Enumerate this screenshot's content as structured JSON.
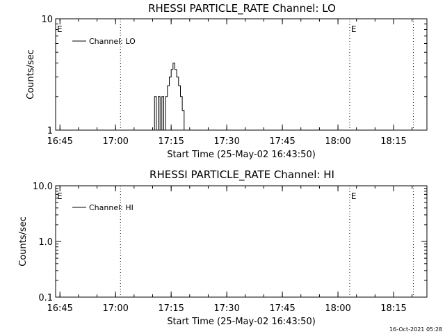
{
  "colors": {
    "background": "#ffffff",
    "foreground": "#000000"
  },
  "timestamp": "16-Oct-2021 05:28",
  "chart_data": [
    {
      "type": "line",
      "title": "RHESSI PARTICLE_RATE Channel: LO",
      "xlabel": "Start Time (25-May-02 16:43:50)",
      "ylabel": "Counts/sec",
      "y_scale": "log",
      "ylim": [
        1,
        10
      ],
      "y_ticks": [
        "1",
        "10"
      ],
      "xlim": [
        "16:43:50",
        "18:24:00"
      ],
      "x_ticks": [
        "16:45",
        "17:00",
        "17:15",
        "17:30",
        "17:45",
        "18:00",
        "18:15"
      ],
      "grid": false,
      "legend": {
        "position": "top-left",
        "entries": [
          "Channel: LO"
        ]
      },
      "eclipse_markers": [
        {
          "label": "E",
          "x": "16:43:50"
        },
        {
          "label": "E",
          "x": "18:03:10"
        }
      ],
      "dotted_lines_x": [
        "17:01:20",
        "18:03:10",
        "18:20:20"
      ],
      "series": [
        {
          "name": "Channel: LO",
          "x": [
            "17:10:00",
            "17:10:30",
            "17:10:30",
            "17:11:00",
            "17:11:00",
            "17:11:30",
            "17:11:30",
            "17:12:00",
            "17:12:00",
            "17:12:30",
            "17:12:30",
            "17:13:00",
            "17:13:00",
            "17:13:30",
            "17:13:30",
            "17:14:00",
            "17:14:00",
            "17:14:30",
            "17:14:30",
            "17:15:00",
            "17:15:00",
            "17:15:30",
            "17:15:30",
            "17:16:00",
            "17:16:00",
            "17:16:30",
            "17:16:30",
            "17:17:00",
            "17:17:00",
            "17:17:30",
            "17:17:30",
            "17:18:00",
            "17:18:00",
            "17:18:30",
            "17:18:30",
            "17:19:00"
          ],
          "values": [
            1,
            1,
            2,
            2,
            1,
            1,
            2,
            2,
            1,
            1,
            2,
            2,
            1,
            1,
            2,
            2,
            2.5,
            2.5,
            3,
            3,
            3.5,
            3.5,
            4,
            4,
            3.5,
            3.5,
            3,
            3,
            2.5,
            2.5,
            2,
            2,
            1.5,
            1.5,
            1,
            1
          ]
        }
      ]
    },
    {
      "type": "line",
      "title": "RHESSI PARTICLE_RATE Channel: HI",
      "xlabel": "Start Time (25-May-02 16:43:50)",
      "ylabel": "Counts/sec",
      "y_scale": "log",
      "ylim": [
        0.1,
        10
      ],
      "y_ticks": [
        "0.1",
        "1.0",
        "10.0"
      ],
      "xlim": [
        "16:43:50",
        "18:24:00"
      ],
      "x_ticks": [
        "16:45",
        "17:00",
        "17:15",
        "17:30",
        "17:45",
        "18:00",
        "18:15"
      ],
      "grid": false,
      "legend": {
        "position": "top-left",
        "entries": [
          "Channel: HI"
        ]
      },
      "eclipse_markers": [
        {
          "label": "E",
          "x": "16:43:50"
        },
        {
          "label": "E",
          "x": "18:03:10"
        }
      ],
      "dotted_lines_x": [
        "17:01:20",
        "18:03:10",
        "18:20:20"
      ],
      "series": [
        {
          "name": "Channel: HI",
          "x": [],
          "values": []
        }
      ]
    }
  ]
}
